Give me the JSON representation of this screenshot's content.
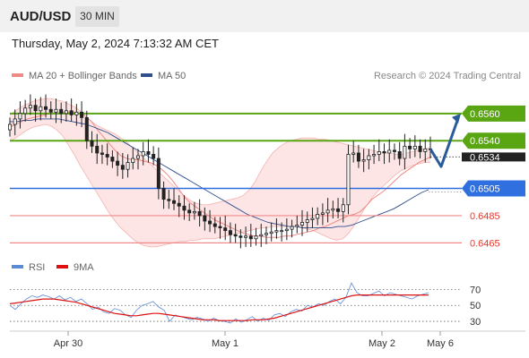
{
  "header": {
    "symbol": "AUD/USD",
    "timeframe": "30 MIN"
  },
  "datetime": "Thursday, May 2, 2024 7:13:32 AM CET",
  "legend": {
    "ma20_bb": {
      "label": "MA 20 + Bollinger Bands",
      "color": "#f08a85"
    },
    "ma50": {
      "label": "MA 50",
      "color": "#2f4f8f"
    }
  },
  "credit": "Research © 2024 Trading Central",
  "rsi_legend": {
    "rsi": {
      "label": "RSI",
      "color": "#5b8ad6"
    },
    "ma9": {
      "label": "9MA",
      "color": "#dd1111"
    }
  },
  "colors": {
    "bullish": "#222222",
    "bearish": "#222222",
    "resistance": "#5aa512",
    "pivot": "#2f6fe0",
    "support": "#f08a8a",
    "band_fill": "#fde0e0",
    "rsi": "#5b8ad6",
    "rsi_ma": "#dd1111",
    "arrow": "#2a5c9a"
  },
  "chart_data": {
    "type": "candlestick",
    "instrument": "AUD/USD",
    "interval": "30 MIN",
    "ylim": [
      0.6458,
      0.6575
    ],
    "x_labels": [
      "Apr 30",
      "May 1",
      "May 2",
      "May 6"
    ],
    "levels": [
      {
        "label": "0.6560",
        "value": 0.656,
        "kind": "resistance"
      },
      {
        "label": "0.6540",
        "value": 0.654,
        "kind": "resistance"
      },
      {
        "label": "0.6505",
        "value": 0.6505,
        "kind": "pivot"
      },
      {
        "label": "0.6485",
        "value": 0.6485,
        "kind": "support"
      },
      {
        "label": "0.6465",
        "value": 0.6465,
        "kind": "support"
      }
    ],
    "current_price": {
      "label": "0.6534",
      "value": 0.6534
    },
    "close": [
      0.6552,
      0.6556,
      0.656,
      0.6564,
      0.6566,
      0.6562,
      0.6565,
      0.6563,
      0.6561,
      0.6563,
      0.656,
      0.6562,
      0.6559,
      0.6561,
      0.6557,
      0.654,
      0.6536,
      0.6531,
      0.653,
      0.6528,
      0.6525,
      0.6522,
      0.6519,
      0.6524,
      0.6527,
      0.6529,
      0.6532,
      0.653,
      0.6527,
      0.6505,
      0.6497,
      0.6496,
      0.6494,
      0.6492,
      0.6489,
      0.6487,
      0.6488,
      0.6485,
      0.6481,
      0.6479,
      0.6477,
      0.6476,
      0.6474,
      0.6471,
      0.647,
      0.6469,
      0.647,
      0.6468,
      0.647,
      0.6471,
      0.6472,
      0.6473,
      0.6474,
      0.6474,
      0.6475,
      0.6477,
      0.6478,
      0.648,
      0.6482,
      0.6483,
      0.6486,
      0.6487,
      0.6489,
      0.649,
      0.6488,
      0.6493,
      0.653,
      0.6531,
      0.6525,
      0.6526,
      0.6529,
      0.653,
      0.6532,
      0.6531,
      0.6533,
      0.6532,
      0.6527,
      0.6536,
      0.6534,
      0.6536,
      0.6532,
      0.6534,
      0.6534
    ],
    "ma20": [
      0.655,
      0.6552,
      0.6554,
      0.6556,
      0.6557,
      0.6558,
      0.6559,
      0.656,
      0.656,
      0.6561,
      0.6561,
      0.6561,
      0.656,
      0.6558,
      0.6554,
      0.6548,
      0.6543,
      0.6538,
      0.6533,
      0.6529,
      0.6527,
      0.6526,
      0.6526,
      0.6525,
      0.6524,
      0.6522,
      0.6519,
      0.6515,
      0.651,
      0.6504,
      0.6498,
      0.6494,
      0.6491,
      0.6488,
      0.6485,
      0.6482,
      0.648,
      0.6478,
      0.6476,
      0.6474,
      0.6472,
      0.6471,
      0.647,
      0.647,
      0.6469,
      0.6469,
      0.6469,
      0.647,
      0.647,
      0.6471,
      0.6472,
      0.6473,
      0.6474,
      0.6476,
      0.6477,
      0.6479,
      0.6481,
      0.6483,
      0.6485,
      0.6486,
      0.6488,
      0.6492,
      0.6497,
      0.65,
      0.6503,
      0.6507,
      0.6511,
      0.6515,
      0.6518,
      0.6521,
      0.6524,
      0.6526,
      0.6528
    ],
    "bb_upper": [
      0.6559,
      0.6562,
      0.6565,
      0.6567,
      0.6569,
      0.657,
      0.6571,
      0.6571,
      0.657,
      0.6569,
      0.6567,
      0.6565,
      0.6562,
      0.6558,
      0.6554,
      0.6551,
      0.6549,
      0.6547,
      0.6545,
      0.6542,
      0.6539,
      0.6535,
      0.6531,
      0.6527,
      0.6523,
      0.6519,
      0.6515,
      0.6511,
      0.6507,
      0.6503,
      0.6499,
      0.6496,
      0.6494,
      0.6493,
      0.6493,
      0.6494,
      0.6495,
      0.6496,
      0.6497,
      0.6498,
      0.65,
      0.6504,
      0.651,
      0.6518,
      0.6525,
      0.6531,
      0.6535,
      0.6538,
      0.654,
      0.6541,
      0.6542,
      0.6542,
      0.6542,
      0.6541,
      0.6541,
      0.654,
      0.6539,
      0.6538,
      0.6537,
      0.6536,
      0.6535,
      0.6534,
      0.6533,
      0.6532,
      0.6531,
      0.6531,
      0.653,
      0.653,
      0.6531,
      0.6532,
      0.6533,
      0.6534,
      0.6535
    ],
    "bb_lower": [
      0.654,
      0.6542,
      0.6545,
      0.6548,
      0.655,
      0.6551,
      0.6552,
      0.6551,
      0.6548,
      0.6544,
      0.6537,
      0.653,
      0.6522,
      0.6515,
      0.6508,
      0.6501,
      0.6494,
      0.6487,
      0.6481,
      0.6476,
      0.6472,
      0.6468,
      0.6465,
      0.6463,
      0.6462,
      0.6462,
      0.6463,
      0.6464,
      0.6465,
      0.6466,
      0.6466,
      0.6467,
      0.6467,
      0.6468,
      0.6468,
      0.6468,
      0.6469,
      0.647,
      0.6471,
      0.6472,
      0.6473,
      0.6474,
      0.6475,
      0.6476,
      0.6476,
      0.6477,
      0.6477,
      0.6477,
      0.6477,
      0.6477,
      0.6476,
      0.6475,
      0.6474,
      0.6472,
      0.647,
      0.6468,
      0.6467,
      0.6468,
      0.6472,
      0.6478,
      0.6485,
      0.6492,
      0.6498,
      0.6503,
      0.6507,
      0.6511,
      0.6515,
      0.6518,
      0.652,
      0.6522,
      0.6523,
      0.6524,
      0.6524
    ],
    "ma50": [
      0.6554,
      0.6554,
      0.6555,
      0.6555,
      0.6556,
      0.6556,
      0.6556,
      0.6556,
      0.6555,
      0.6554,
      0.6553,
      0.6552,
      0.655,
      0.6548,
      0.6546,
      0.6543,
      0.654,
      0.6537,
      0.6534,
      0.6531,
      0.6528,
      0.6525,
      0.6522,
      0.6519,
      0.6516,
      0.6513,
      0.651,
      0.6507,
      0.6504,
      0.6501,
      0.6498,
      0.6495,
      0.6492,
      0.6489,
      0.6486,
      0.6484,
      0.6482,
      0.648,
      0.6479,
      0.6478,
      0.6477,
      0.6477,
      0.6476,
      0.6476,
      0.6476,
      0.6476,
      0.6476,
      0.6477,
      0.6477,
      0.6478,
      0.648,
      0.6482,
      0.6484,
      0.6486,
      0.6488,
      0.649,
      0.6493,
      0.6496,
      0.6499,
      0.6502,
      0.6504
    ],
    "forecast": [
      0.6534,
      0.6521,
      0.656
    ],
    "rsi": {
      "ylim": [
        20,
        85
      ],
      "levels": [
        70,
        50,
        30
      ],
      "rsi": [
        50,
        45,
        52,
        58,
        62,
        60,
        63,
        61,
        58,
        62,
        57,
        60,
        55,
        58,
        52,
        45,
        48,
        42,
        40,
        46,
        44,
        38,
        35,
        44,
        50,
        52,
        55,
        48,
        44,
        30,
        38,
        36,
        34,
        32,
        35,
        33,
        30,
        34,
        31,
        30,
        28,
        33,
        29,
        32,
        36,
        30,
        34,
        31,
        38,
        40,
        36,
        42,
        45,
        43,
        50,
        48,
        52,
        50,
        55,
        58,
        52,
        60,
        78,
        66,
        62,
        62,
        65,
        68,
        62,
        66,
        64,
        62,
        60,
        58,
        62,
        64,
        66
      ],
      "ma9": [
        52,
        53,
        54,
        55,
        56,
        57,
        58,
        58,
        58,
        57,
        56,
        55,
        54,
        52,
        50,
        48,
        46,
        44,
        42,
        40,
        39,
        38,
        37,
        37,
        38,
        39,
        40,
        40,
        39,
        38,
        37,
        36,
        35,
        34,
        33,
        32,
        32,
        32,
        31,
        31,
        31,
        31,
        31,
        31,
        32,
        32,
        32,
        33,
        34,
        36,
        38,
        40,
        42,
        44,
        46,
        48,
        50,
        52,
        54,
        56,
        58,
        60,
        62,
        63,
        63,
        63,
        63,
        63,
        63,
        63,
        63,
        63,
        63,
        63,
        63,
        63,
        63
      ]
    }
  }
}
